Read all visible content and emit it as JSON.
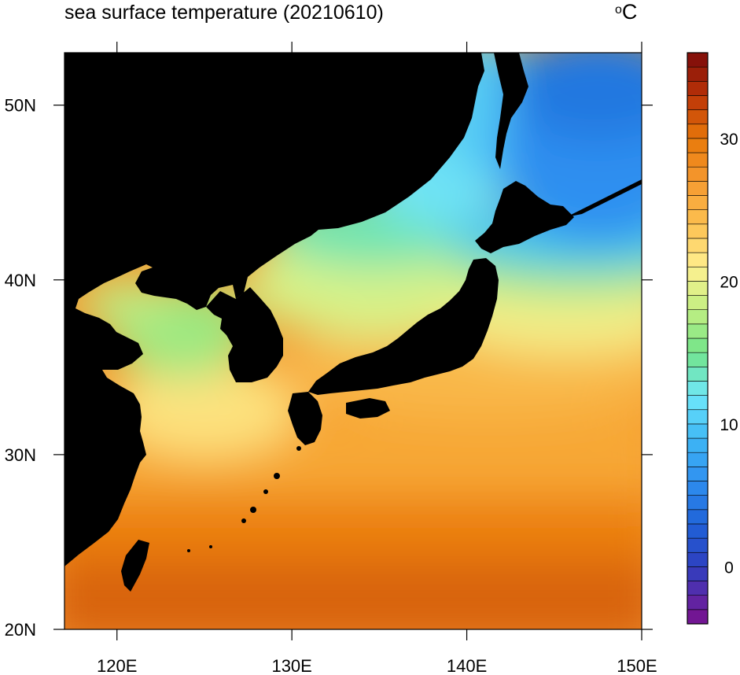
{
  "title": "sea surface temperature (20210610)",
  "units": {
    "degree": "o",
    "letter": "C"
  },
  "map": {
    "lon_range": [
      117,
      150
    ],
    "lat_range": [
      20,
      53
    ],
    "land_color": "#000000"
  },
  "axes": {
    "x_ticks": [
      {
        "value": 120,
        "label": "120E"
      },
      {
        "value": 130,
        "label": "130E"
      },
      {
        "value": 140,
        "label": "140E"
      },
      {
        "value": 150,
        "label": "150E"
      }
    ],
    "y_ticks": [
      {
        "value": 20,
        "label": "20N"
      },
      {
        "value": 30,
        "label": "30N"
      },
      {
        "value": 40,
        "label": "40N"
      },
      {
        "value": 50,
        "label": "50N"
      }
    ]
  },
  "colorbar": {
    "min": -4,
    "max": 36,
    "step": 1,
    "labels": [
      {
        "value": 0,
        "label": "0"
      },
      {
        "value": 10,
        "label": "10"
      },
      {
        "value": 20,
        "label": "20"
      },
      {
        "value": 30,
        "label": "30"
      }
    ],
    "stops": [
      {
        "value": -4,
        "color": "#7a0f8c"
      },
      {
        "value": -2,
        "color": "#5a2aa8"
      },
      {
        "value": 0,
        "color": "#2e3fc0"
      },
      {
        "value": 3,
        "color": "#1f62d8"
      },
      {
        "value": 6,
        "color": "#2f8ff0"
      },
      {
        "value": 9,
        "color": "#3fb8f5"
      },
      {
        "value": 12,
        "color": "#6fe8fa"
      },
      {
        "value": 15,
        "color": "#72e48a"
      },
      {
        "value": 18,
        "color": "#c2ef82"
      },
      {
        "value": 21,
        "color": "#fff090"
      },
      {
        "value": 24,
        "color": "#fcc050"
      },
      {
        "value": 27,
        "color": "#f59a30"
      },
      {
        "value": 30,
        "color": "#e8780a"
      },
      {
        "value": 33,
        "color": "#bb3308"
      },
      {
        "value": 36,
        "color": "#7b0a0a"
      }
    ]
  }
}
